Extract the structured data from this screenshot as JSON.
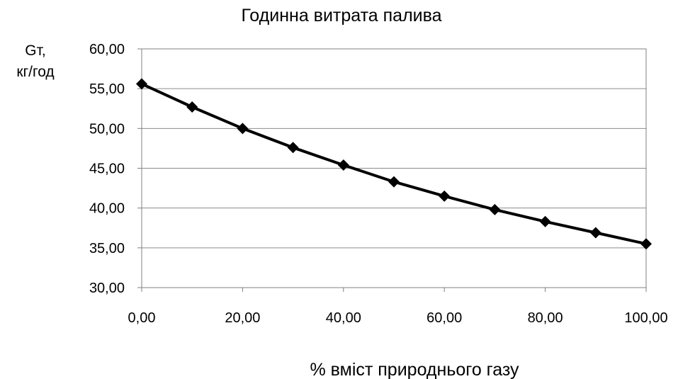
{
  "chart_data": {
    "type": "line",
    "title": "Годинна витрата палива",
    "ylabel_line1": "Gт,",
    "ylabel_line2": "кг/год",
    "xlabel": "% вміст природнього газу",
    "x": [
      0,
      10,
      20,
      30,
      40,
      50,
      60,
      70,
      80,
      90,
      100
    ],
    "series": [
      {
        "values": [
          55.6,
          52.7,
          50.0,
          47.6,
          45.4,
          43.3,
          41.5,
          39.8,
          38.3,
          36.9,
          35.5
        ]
      }
    ],
    "xlim": [
      0,
      100
    ],
    "ylim": [
      30,
      60
    ],
    "xticks": [
      "0,00",
      "20,00",
      "40,00",
      "60,00",
      "80,00",
      "100,00"
    ],
    "yticks": [
      "30,00",
      "35,00",
      "40,00",
      "45,00",
      "50,00",
      "55,00",
      "60,00"
    ],
    "marker": "diamond",
    "line_color": "#000000",
    "grid": true
  }
}
